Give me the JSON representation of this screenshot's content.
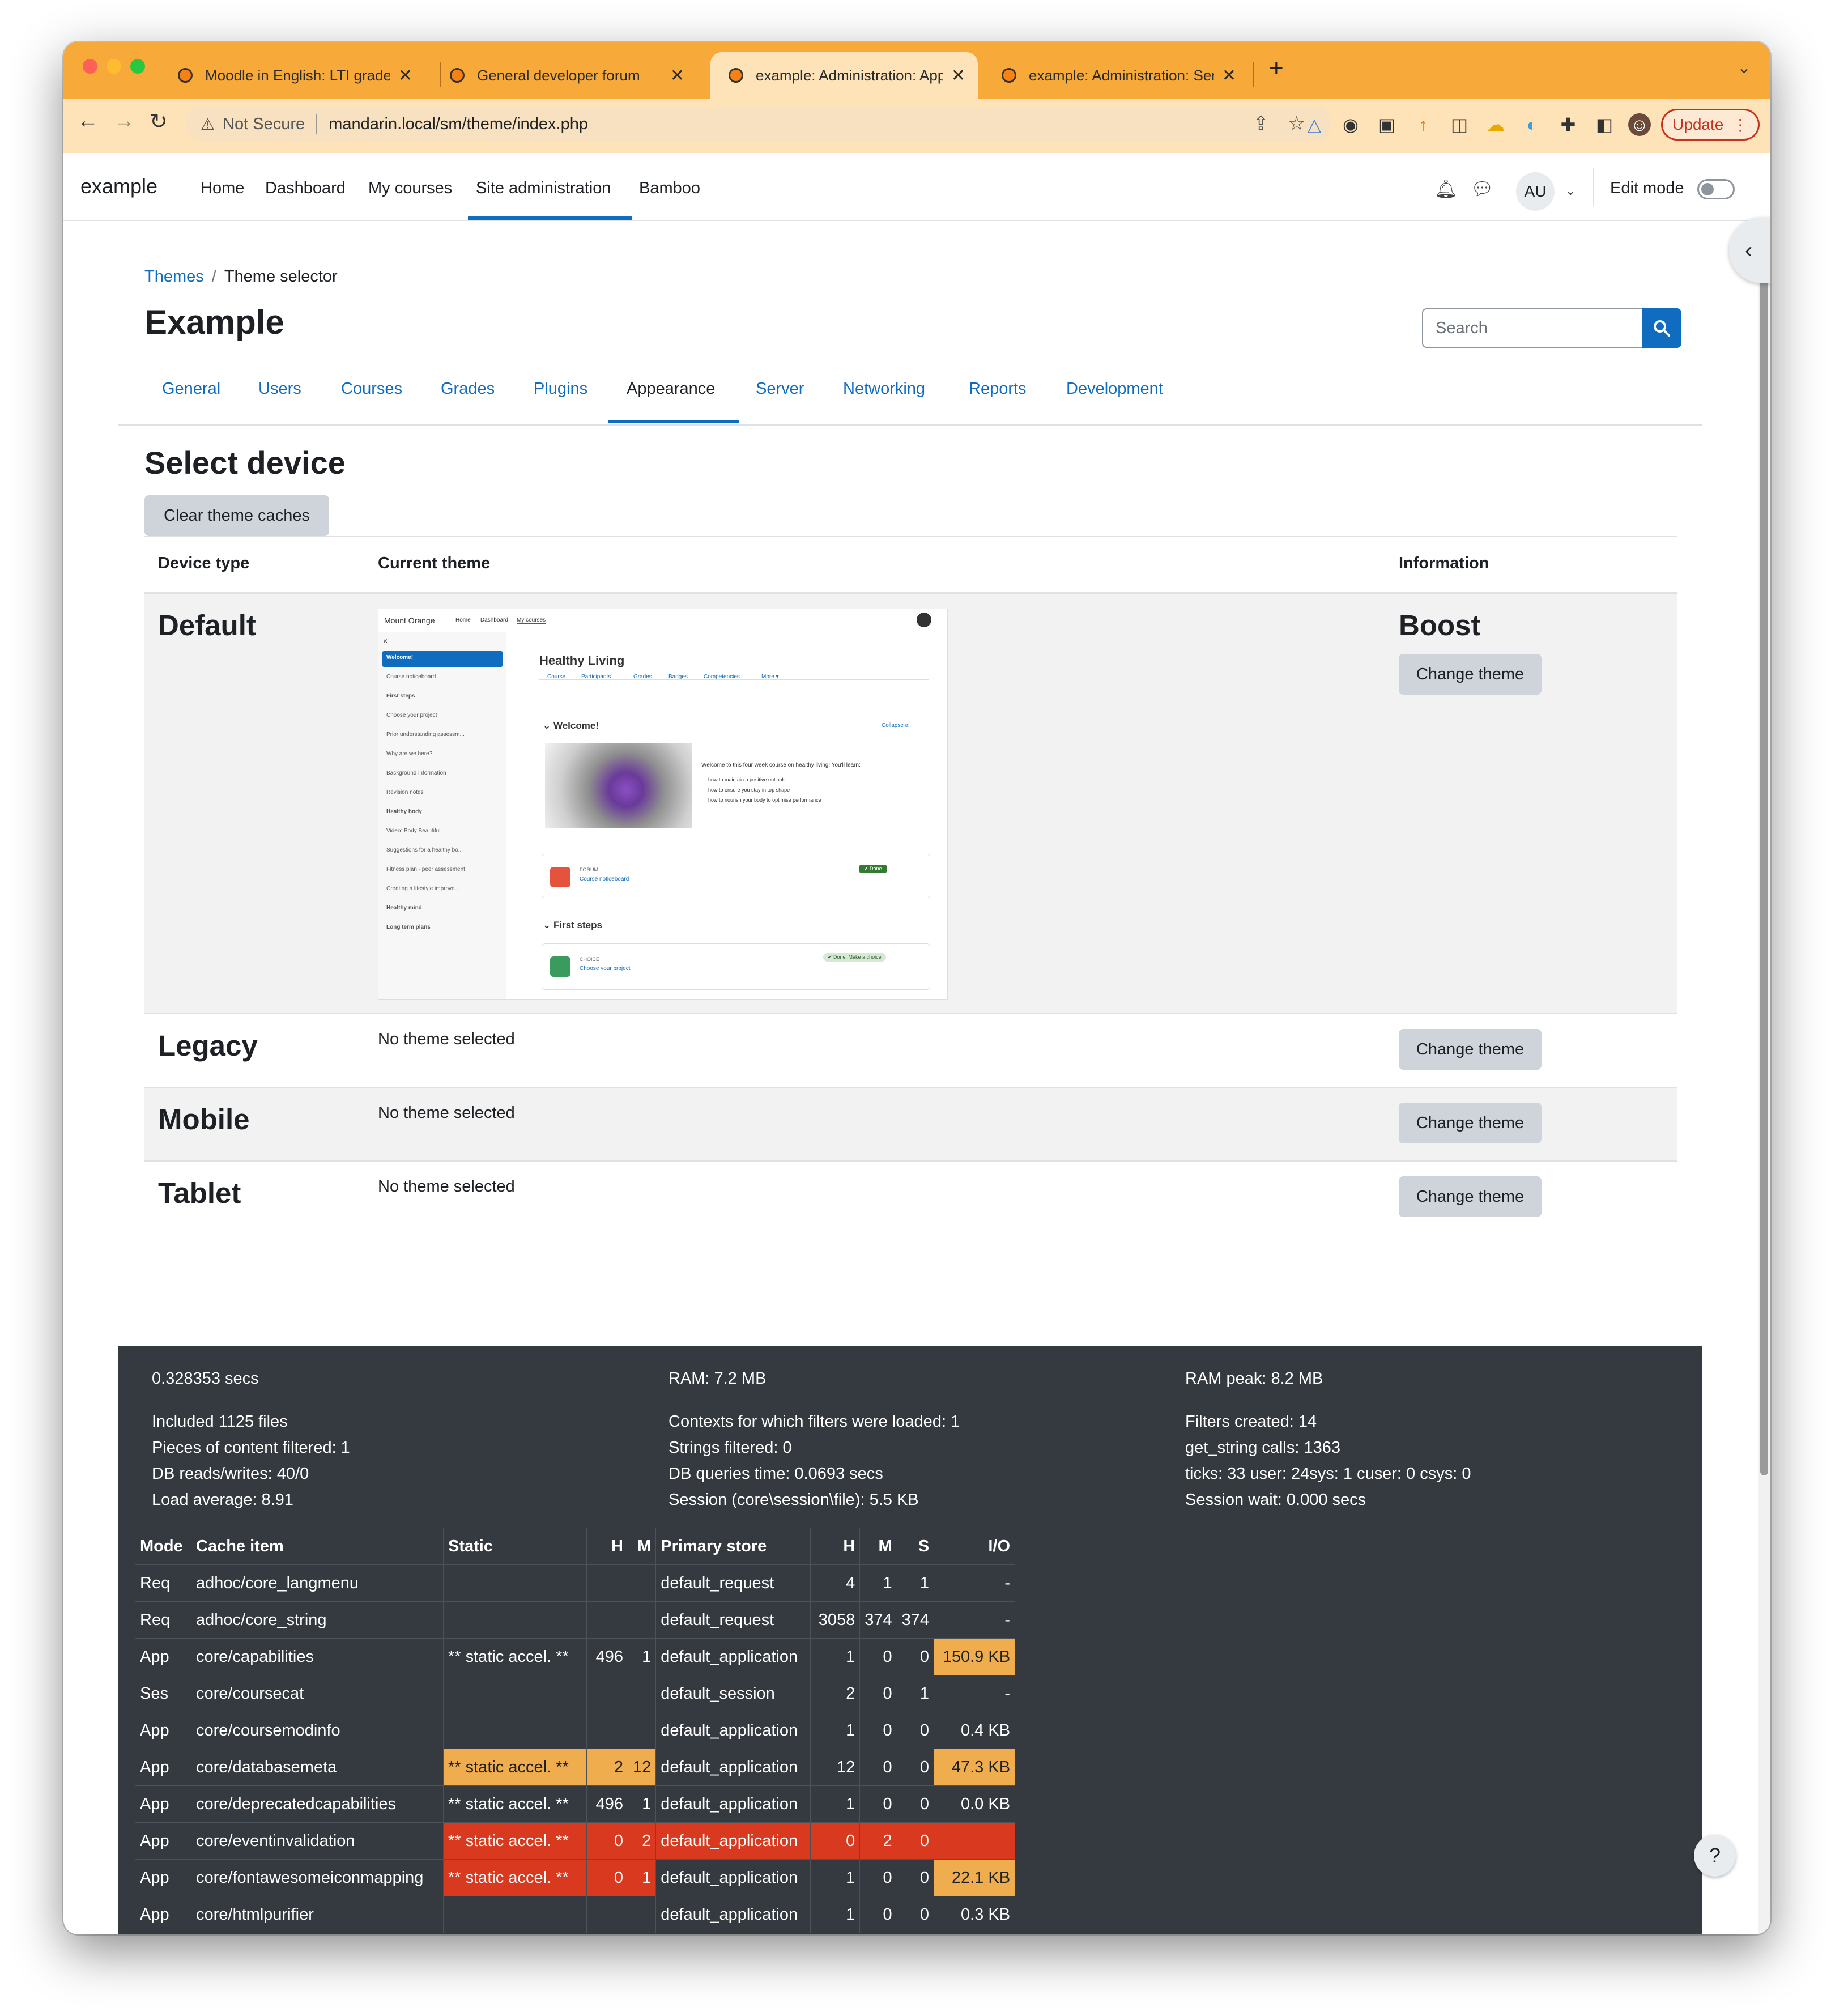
{
  "browser": {
    "tabs": [
      {
        "title": "Moodle in English: LTI grade sy"
      },
      {
        "title": "General developer forum"
      },
      {
        "title": "example: Administration: Appe"
      },
      {
        "title": "example: Administration: Serve"
      }
    ],
    "new_tab_glyph": "+",
    "security_label": "Not Secure",
    "url": "mandarin.local/sm/theme/index.php",
    "update_label": "Update",
    "accent": "#f7a93a"
  },
  "site": {
    "brand": "example",
    "nav": [
      "Home",
      "Dashboard",
      "My courses",
      "Site administration",
      "Bamboo"
    ],
    "avatar_initials": "AU",
    "edit_mode_label": "Edit mode",
    "primary_color": "#0f6cbf"
  },
  "page": {
    "breadcrumb": {
      "parent": "Themes",
      "current": "Theme selector"
    },
    "title": "Example",
    "search_placeholder": "Search",
    "admin_tabs": [
      "General",
      "Users",
      "Courses",
      "Grades",
      "Plugins",
      "Appearance",
      "Server",
      "Networking",
      "Reports",
      "Development"
    ],
    "active_admin_tab": "Appearance",
    "section_heading": "Select device",
    "clear_caches_label": "Clear theme caches",
    "table_headers": {
      "device": "Device type",
      "theme": "Current theme",
      "info": "Information"
    },
    "devices": [
      {
        "name": "Default",
        "theme": "Boost",
        "button": "Change theme"
      },
      {
        "name": "Legacy",
        "theme": "No theme selected",
        "button": "Change theme"
      },
      {
        "name": "Mobile",
        "theme": "No theme selected",
        "button": "Change theme"
      },
      {
        "name": "Tablet",
        "theme": "No theme selected",
        "button": "Change theme"
      }
    ],
    "preview": {
      "site": "Mount Orange",
      "nav": [
        "Home",
        "Dashboard",
        "My courses"
      ],
      "course_title": "Healthy Living",
      "course_tabs": [
        "Course",
        "Participants",
        "Grades",
        "Badges",
        "Competencies",
        "More ▾"
      ],
      "section1": "Welcome!",
      "collapse": "Collapse all",
      "intro": "Welcome to this four week course on healthy living! You'll learn:",
      "bullets": [
        "how to maintain a positive outlook",
        "how to ensure you stay in top shape",
        "how to nourish your body to optimise performance"
      ],
      "forum_type": "FORUM",
      "forum_name": "Course noticeboard",
      "done": "✔ Done",
      "section2": "First steps",
      "choice_type": "CHOICE",
      "choice_name": "Choose your project",
      "choice_done": "✔ Done: Make a choice",
      "sidebar": [
        "Welcome!",
        "Course noticeboard",
        "First steps",
        "Choose your project",
        "Prior understanding assessm...",
        "Why are we here?",
        "Background information",
        "Revision notes",
        "Healthy body",
        "Video: Body Beautiful",
        "Suggestions for a healthy bo...",
        "Fitness plan - peer assessment",
        "Creating a lifestyle improve...",
        "Healthy mind",
        "Long term plans"
      ]
    }
  },
  "perf": {
    "col1": [
      "0.328353 secs",
      "",
      "Included 1125 files",
      "Pieces of content filtered: 1",
      "DB reads/writes: 40/0",
      "Load average: 8.91"
    ],
    "col2": [
      "RAM: 7.2 MB",
      "",
      "Contexts for which filters were loaded: 1",
      "Strings filtered: 0",
      "DB queries time: 0.0693 secs",
      "Session (core\\session\\file): 5.5 KB"
    ],
    "col3": [
      "RAM peak: 8.2 MB",
      "",
      "Filters created: 14",
      "get_string calls: 1363",
      "ticks: 33 user: 24sys: 1 cuser: 0 csys: 0",
      "Session wait: 0.000 secs"
    ],
    "cache_headers": [
      "Mode",
      "Cache item",
      "Static",
      "H",
      "M",
      "Primary store",
      "H",
      "M",
      "S",
      "I/O"
    ],
    "cache_rows": [
      {
        "mode": "Req",
        "item": "adhoc/core_langmenu",
        "static": "",
        "sh": "",
        "sm": "",
        "store": "default_request",
        "h": "4",
        "m": "1",
        "s": "1",
        "io": "-",
        "sstatus": "",
        "pstatus": "",
        "iostatus": ""
      },
      {
        "mode": "Req",
        "item": "adhoc/core_string",
        "static": "",
        "sh": "",
        "sm": "",
        "store": "default_request",
        "h": "3058",
        "m": "374",
        "s": "374",
        "io": "-",
        "sstatus": "",
        "pstatus": "",
        "iostatus": ""
      },
      {
        "mode": "App",
        "item": "core/capabilities",
        "static": "** static accel. **",
        "sh": "496",
        "sm": "1",
        "store": "default_application",
        "h": "1",
        "m": "0",
        "s": "0",
        "io": "150.9 KB",
        "sstatus": "",
        "pstatus": "",
        "iostatus": "warn"
      },
      {
        "mode": "Ses",
        "item": "core/coursecat",
        "static": "",
        "sh": "",
        "sm": "",
        "store": "default_session",
        "h": "2",
        "m": "0",
        "s": "1",
        "io": "-",
        "sstatus": "",
        "pstatus": "",
        "iostatus": ""
      },
      {
        "mode": "App",
        "item": "core/coursemodinfo",
        "static": "",
        "sh": "",
        "sm": "",
        "store": "default_application",
        "h": "1",
        "m": "0",
        "s": "0",
        "io": "0.4 KB",
        "sstatus": "",
        "pstatus": "",
        "iostatus": ""
      },
      {
        "mode": "App",
        "item": "core/databasemeta",
        "static": "** static accel. **",
        "sh": "2",
        "sm": "12",
        "store": "default_application",
        "h": "12",
        "m": "0",
        "s": "0",
        "io": "47.3 KB",
        "sstatus": "warn",
        "pstatus": "",
        "iostatus": "warn"
      },
      {
        "mode": "App",
        "item": "core/deprecatedcapabilities",
        "static": "** static accel. **",
        "sh": "496",
        "sm": "1",
        "store": "default_application",
        "h": "1",
        "m": "0",
        "s": "0",
        "io": "0.0 KB",
        "sstatus": "",
        "pstatus": "",
        "iostatus": ""
      },
      {
        "mode": "App",
        "item": "core/eventinvalidation",
        "static": "** static accel. **",
        "sh": "0",
        "sm": "2",
        "store": "default_application",
        "h": "0",
        "m": "2",
        "s": "0",
        "io": "",
        "sstatus": "danger",
        "pstatus": "danger",
        "iostatus": "danger"
      },
      {
        "mode": "App",
        "item": "core/fontawesomeiconmapping",
        "static": "** static accel. **",
        "sh": "0",
        "sm": "1",
        "store": "default_application",
        "h": "1",
        "m": "0",
        "s": "0",
        "io": "22.1 KB",
        "sstatus": "danger",
        "pstatus": "",
        "iostatus": "warn"
      },
      {
        "mode": "App",
        "item": "core/htmlpurifier",
        "static": "",
        "sh": "",
        "sm": "",
        "store": "default_application",
        "h": "1",
        "m": "0",
        "s": "0",
        "io": "0.3 KB",
        "sstatus": "",
        "pstatus": "",
        "iostatus": ""
      }
    ],
    "warn_color": "#f0ad4e",
    "danger_color": "#d9391f"
  },
  "help_label": "?"
}
